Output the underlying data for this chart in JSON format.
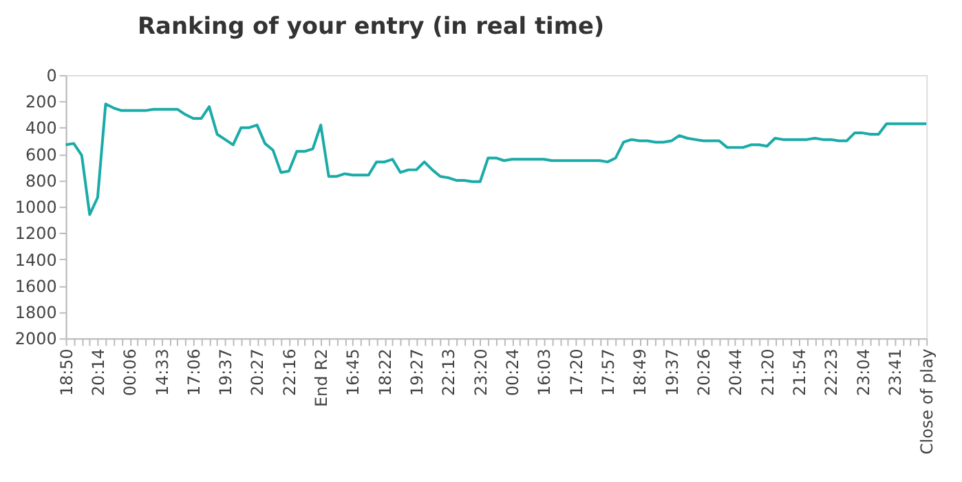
{
  "chart_data": {
    "type": "line",
    "title": "Ranking of your entry (in real time)",
    "categories": [
      "18:50",
      null,
      null,
      null,
      "20:14",
      null,
      null,
      null,
      "00:06",
      null,
      null,
      null,
      "14:33",
      null,
      null,
      null,
      "17:06",
      null,
      null,
      null,
      "19:37",
      null,
      null,
      null,
      "20:27",
      null,
      null,
      null,
      "22:16",
      null,
      null,
      null,
      "End R2",
      null,
      null,
      null,
      "16:45",
      null,
      null,
      null,
      "18:22",
      null,
      null,
      null,
      "19:27",
      null,
      null,
      null,
      "22:13",
      null,
      null,
      null,
      "23:20",
      null,
      null,
      null,
      "00:24",
      null,
      null,
      null,
      "16:03",
      null,
      null,
      null,
      "17:20",
      null,
      null,
      null,
      "17:57",
      null,
      null,
      null,
      "18:49",
      null,
      null,
      null,
      "19:37",
      null,
      null,
      null,
      "20:26",
      null,
      null,
      null,
      "20:44",
      null,
      null,
      null,
      "21:20",
      null,
      null,
      null,
      "21:54",
      null,
      null,
      null,
      "22:23",
      null,
      null,
      null,
      "23:04",
      null,
      null,
      null,
      "23:41",
      null,
      null,
      null,
      "Close of play"
    ],
    "series": [
      {
        "color": "#1aaba8",
        "values": [
          530,
          520,
          610,
          1060,
          930,
          220,
          250,
          270,
          270,
          270,
          270,
          260,
          260,
          260,
          260,
          300,
          330,
          330,
          240,
          450,
          490,
          530,
          400,
          400,
          380,
          520,
          570,
          740,
          730,
          580,
          580,
          560,
          380,
          770,
          770,
          750,
          760,
          760,
          760,
          660,
          660,
          640,
          740,
          720,
          720,
          660,
          720,
          770,
          780,
          800,
          800,
          810,
          810,
          630,
          630,
          650,
          640,
          640,
          640,
          640,
          640,
          650,
          650,
          650,
          650,
          650,
          650,
          650,
          660,
          630,
          510,
          490,
          500,
          500,
          510,
          510,
          500,
          460,
          480,
          490,
          500,
          500,
          500,
          550,
          550,
          550,
          530,
          530,
          540,
          480,
          490,
          490,
          490,
          490,
          480,
          490,
          490,
          500,
          500,
          440,
          440,
          450,
          450,
          370,
          370,
          370,
          370,
          370,
          370
        ]
      }
    ],
    "ylim": [
      2000,
      0
    ],
    "yticks": [
      0,
      200,
      400,
      600,
      800,
      1000,
      1200,
      1400,
      1600,
      1800,
      2000
    ],
    "grid": false,
    "line_style": "solid",
    "marker": "none"
  }
}
